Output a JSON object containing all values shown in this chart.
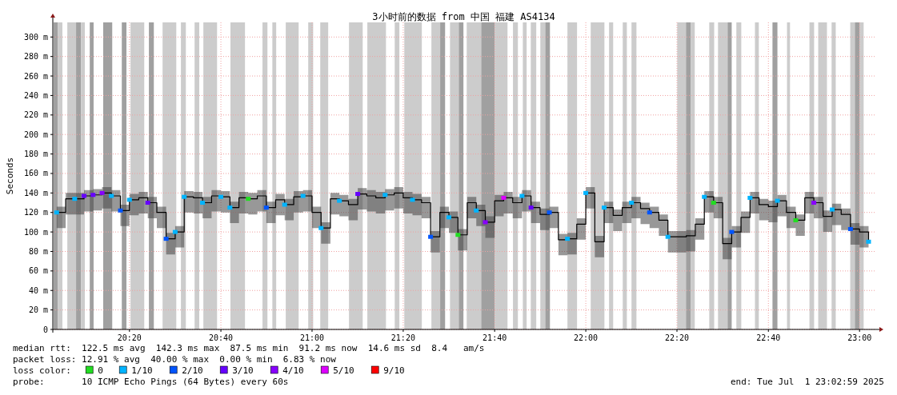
{
  "chart_data": {
    "type": "step",
    "title": "3小时前的数据 from 中国 福建 AS4134",
    "ylabel": "Seconds",
    "legend_title": "loss color:",
    "legend": "bottom",
    "grid": true,
    "xlim": [
      20.053,
      23.055
    ],
    "xticks": [
      {
        "value": 20.333,
        "label": "20:20"
      },
      {
        "value": 20.667,
        "label": "20:40"
      },
      {
        "value": 21,
        "label": "21:00"
      },
      {
        "value": 21.333,
        "label": "21:20"
      },
      {
        "value": 21.667,
        "label": "21:40"
      },
      {
        "value": 22,
        "label": "22:00"
      },
      {
        "value": 22.333,
        "label": "22:20"
      },
      {
        "value": 22.667,
        "label": "22:40"
      },
      {
        "value": 23,
        "label": "23:00"
      }
    ],
    "ylim": [
      0,
      315
    ],
    "yticks": [
      0,
      {
        "value": 20,
        "label": "20 m"
      },
      {
        "value": 40,
        "label": "40 m"
      },
      {
        "value": 60,
        "label": "60 m"
      },
      {
        "value": 80,
        "label": "80 m"
      },
      {
        "value": 100,
        "label": "100 m"
      },
      {
        "value": 120,
        "label": "120 m"
      },
      {
        "value": 140,
        "label": "140 m"
      },
      {
        "value": 160,
        "label": "160 m"
      },
      {
        "value": 180,
        "label": "180 m"
      },
      {
        "value": 200,
        "label": "200 m"
      },
      {
        "value": 220,
        "label": "220 m"
      },
      {
        "value": 240,
        "label": "240 m"
      },
      {
        "value": 260,
        "label": "260 m"
      },
      {
        "value": 280,
        "label": "280 m"
      },
      {
        "value": 300,
        "label": "300 m"
      }
    ],
    "bands": [
      {
        "axis": "x",
        "from": 20.056,
        "to": 20.071,
        "color": "#a0a0a0"
      },
      {
        "axis": "x",
        "from": 20.071,
        "to": 20.088,
        "color": "#cccccc"
      },
      {
        "axis": "x",
        "from": 20.106,
        "to": 20.138,
        "color": "#cccccc"
      },
      {
        "axis": "x",
        "from": 20.138,
        "to": 20.156,
        "color": "#a0a0a0"
      },
      {
        "axis": "x",
        "from": 20.156,
        "to": 20.17,
        "color": "#cccccc"
      },
      {
        "axis": "x",
        "from": 20.188,
        "to": 20.202,
        "color": "#a0a0a0"
      },
      {
        "axis": "x",
        "from": 20.237,
        "to": 20.27,
        "color": "#a0a0a0"
      },
      {
        "axis": "x",
        "from": 20.305,
        "to": 20.322,
        "color": "#a0a0a0"
      },
      {
        "axis": "x",
        "from": 20.337,
        "to": 20.387,
        "color": "#cccccc"
      },
      {
        "axis": "x",
        "from": 20.404,
        "to": 20.422,
        "color": "#a0a0a0"
      },
      {
        "axis": "x",
        "from": 20.454,
        "to": 20.504,
        "color": "#cccccc"
      },
      {
        "axis": "x",
        "from": 20.521,
        "to": 20.539,
        "color": "#cccccc"
      },
      {
        "axis": "x",
        "from": 20.571,
        "to": 20.588,
        "color": "#cccccc"
      },
      {
        "axis": "x",
        "from": 20.603,
        "to": 20.653,
        "color": "#cccccc"
      },
      {
        "axis": "x",
        "from": 20.702,
        "to": 20.755,
        "color": "#cccccc"
      },
      {
        "axis": "x",
        "from": 20.819,
        "to": 20.837,
        "color": "#cccccc"
      },
      {
        "axis": "x",
        "from": 20.855,
        "to": 20.869,
        "color": "#cccccc"
      },
      {
        "axis": "x",
        "from": 20.904,
        "to": 20.951,
        "color": "#cccccc"
      },
      {
        "axis": "x",
        "from": 20.986,
        "to": 21.004,
        "color": "#cccccc"
      },
      {
        "axis": "x",
        "from": 21.03,
        "to": 21.059,
        "color": "#cccccc"
      },
      {
        "axis": "x",
        "from": 21.135,
        "to": 21.185,
        "color": "#cccccc"
      },
      {
        "axis": "x",
        "from": 21.202,
        "to": 21.27,
        "color": "#cccccc"
      },
      {
        "axis": "x",
        "from": 21.302,
        "to": 21.319,
        "color": "#cccccc"
      },
      {
        "axis": "x",
        "from": 21.337,
        "to": 21.401,
        "color": "#cccccc"
      },
      {
        "axis": "x",
        "from": 21.436,
        "to": 21.468,
        "color": "#cccccc"
      },
      {
        "axis": "x",
        "from": 21.468,
        "to": 21.486,
        "color": "#a0a0a0"
      },
      {
        "axis": "x",
        "from": 21.504,
        "to": 21.536,
        "color": "#cccccc"
      },
      {
        "axis": "x",
        "from": 21.536,
        "to": 21.553,
        "color": "#a0a0a0"
      },
      {
        "axis": "x",
        "from": 21.565,
        "to": 21.618,
        "color": "#cccccc"
      },
      {
        "axis": "x",
        "from": 21.618,
        "to": 21.667,
        "color": "#a0a0a0"
      },
      {
        "axis": "x",
        "from": 21.667,
        "to": 21.714,
        "color": "#cccccc"
      },
      {
        "axis": "x",
        "from": 21.734,
        "to": 21.752,
        "color": "#cccccc"
      },
      {
        "axis": "x",
        "from": 21.77,
        "to": 21.784,
        "color": "#cccccc"
      },
      {
        "axis": "x",
        "from": 21.799,
        "to": 21.819,
        "color": "#cccccc"
      },
      {
        "axis": "x",
        "from": 21.834,
        "to": 21.852,
        "color": "#cccccc"
      },
      {
        "axis": "x",
        "from": 21.852,
        "to": 21.869,
        "color": "#a0a0a0"
      },
      {
        "axis": "x",
        "from": 21.933,
        "to": 21.968,
        "color": "#cccccc"
      },
      {
        "axis": "x",
        "from": 22.018,
        "to": 22.068,
        "color": "#cccccc"
      },
      {
        "axis": "x",
        "from": 22.085,
        "to": 22.1,
        "color": "#cccccc"
      },
      {
        "axis": "x",
        "from": 22.135,
        "to": 22.15,
        "color": "#cccccc"
      },
      {
        "axis": "x",
        "from": 22.167,
        "to": 22.185,
        "color": "#cccccc"
      },
      {
        "axis": "x",
        "from": 22.334,
        "to": 22.366,
        "color": "#cccccc"
      },
      {
        "axis": "x",
        "from": 22.366,
        "to": 22.384,
        "color": "#a0a0a0"
      },
      {
        "axis": "x",
        "from": 22.384,
        "to": 22.398,
        "color": "#cccccc"
      },
      {
        "axis": "x",
        "from": 22.451,
        "to": 22.469,
        "color": "#cccccc"
      },
      {
        "axis": "x",
        "from": 22.483,
        "to": 22.518,
        "color": "#cccccc"
      },
      {
        "axis": "x",
        "from": 22.518,
        "to": 22.533,
        "color": "#a0a0a0"
      },
      {
        "axis": "x",
        "from": 22.55,
        "to": 22.568,
        "color": "#cccccc"
      },
      {
        "axis": "x",
        "from": 22.618,
        "to": 22.632,
        "color": "#cccccc"
      },
      {
        "axis": "x",
        "from": 22.682,
        "to": 22.7,
        "color": "#a0a0a0"
      },
      {
        "axis": "x",
        "from": 22.735,
        "to": 22.746,
        "color": "#cccccc"
      },
      {
        "axis": "x",
        "from": 22.817,
        "to": 22.834,
        "color": "#cccccc"
      },
      {
        "axis": "x",
        "from": 22.849,
        "to": 22.881,
        "color": "#cccccc"
      },
      {
        "axis": "x",
        "from": 22.898,
        "to": 22.913,
        "color": "#cccccc"
      },
      {
        "axis": "x",
        "from": 22.966,
        "to": 22.983,
        "color": "#cccccc"
      },
      {
        "axis": "x",
        "from": 22.983,
        "to": 23.001,
        "color": "#a0a0a0"
      },
      {
        "axis": "x",
        "from": 23.001,
        "to": 23.015,
        "color": "#cccccc"
      }
    ],
    "x": [
      20.067,
      20.1,
      20.133,
      20.167,
      20.2,
      20.233,
      20.267,
      20.3,
      20.333,
      20.367,
      20.4,
      20.433,
      20.467,
      20.5,
      20.533,
      20.567,
      20.6,
      20.633,
      20.667,
      20.7,
      20.733,
      20.767,
      20.8,
      20.833,
      20.867,
      20.9,
      20.933,
      20.967,
      21,
      21.033,
      21.067,
      21.1,
      21.133,
      21.167,
      21.2,
      21.233,
      21.267,
      21.3,
      21.333,
      21.367,
      21.4,
      21.433,
      21.467,
      21.5,
      21.533,
      21.567,
      21.6,
      21.633,
      21.667,
      21.7,
      21.733,
      21.767,
      21.8,
      21.833,
      21.867,
      21.9,
      21.933,
      21.967,
      22,
      22.033,
      22.067,
      22.1,
      22.133,
      22.167,
      22.2,
      22.233,
      22.267,
      22.3,
      22.333,
      22.367,
      22.4,
      22.433,
      22.467,
      22.5,
      22.533,
      22.567,
      22.6,
      22.633,
      22.667,
      22.7,
      22.733,
      22.767,
      22.8,
      22.833,
      22.867,
      22.9,
      22.933,
      22.967,
      23,
      23.033
    ],
    "series": [
      {
        "color": "#000000",
        "values": [
          120,
          134,
          134,
          137,
          138,
          140,
          137,
          122,
          133,
          135,
          130,
          120,
          93,
          100,
          136,
          135,
          130,
          137,
          136,
          125,
          135,
          134,
          137,
          125,
          133,
          128,
          136,
          137,
          120,
          104,
          134,
          132,
          128,
          139,
          137,
          135,
          138,
          140,
          135,
          133,
          130,
          95,
          120,
          115,
          97,
          130,
          122,
          110,
          132,
          135,
          130,
          137,
          125,
          118,
          120,
          92,
          93,
          108,
          140,
          90,
          125,
          117,
          125,
          130,
          124,
          120,
          112,
          95,
          95,
          96,
          108,
          136,
          130,
          88,
          100,
          115,
          135,
          128,
          126,
          132,
          120,
          112,
          135,
          130,
          116,
          123,
          118,
          103,
          100,
          90
        ],
        "upper": [
          126,
          140,
          140,
          143,
          144,
          146,
          143,
          128,
          139,
          141,
          136,
          126,
          99,
          106,
          142,
          141,
          136,
          143,
          142,
          131,
          141,
          140,
          143,
          131,
          139,
          134,
          142,
          143,
          126,
          110,
          140,
          138,
          134,
          145,
          143,
          141,
          144,
          146,
          141,
          139,
          136,
          101,
          126,
          121,
          103,
          136,
          128,
          116,
          138,
          141,
          136,
          143,
          131,
          124,
          126,
          98,
          99,
          114,
          146,
          96,
          131,
          123,
          131,
          136,
          130,
          126,
          118,
          101,
          101,
          102,
          114,
          142,
          136,
          94,
          106,
          121,
          141,
          134,
          132,
          138,
          126,
          118,
          141,
          136,
          122,
          129,
          124,
          109,
          106,
          96
        ],
        "lower": [
          104,
          118,
          118,
          121,
          122,
          124,
          121,
          106,
          117,
          119,
          114,
          104,
          77,
          84,
          120,
          119,
          114,
          121,
          120,
          109,
          119,
          118,
          121,
          109,
          117,
          112,
          120,
          121,
          104,
          88,
          118,
          116,
          112,
          123,
          121,
          119,
          122,
          124,
          119,
          117,
          114,
          79,
          104,
          99,
          81,
          114,
          106,
          94,
          116,
          119,
          114,
          121,
          109,
          102,
          104,
          76,
          77,
          92,
          124,
          74,
          109,
          101,
          109,
          114,
          108,
          104,
          96,
          79,
          79,
          80,
          92,
          120,
          114,
          72,
          84,
          99,
          119,
          112,
          110,
          116,
          104,
          96,
          119,
          114,
          100,
          107,
          102,
          87,
          84,
          74
        ]
      },
      {
        "type": "scatter",
        "name": "0",
        "color": "#22dd22",
        "marker": "square",
        "x": [
          20.767,
          21.533,
          22.467,
          22.767
        ],
        "values": [
          134,
          97,
          130,
          112
        ]
      },
      {
        "type": "scatter",
        "name": "1/10",
        "color": "#00b4ff",
        "marker": "square",
        "x": [
          20.067,
          20.133,
          20.267,
          20.333,
          20.5,
          20.533,
          20.6,
          20.667,
          20.7,
          20.9,
          20.967,
          21.033,
          21.1,
          21.267,
          21.367,
          21.5,
          21.6,
          21.767,
          21.933,
          22,
          22.067,
          22.167,
          22.3,
          22.433,
          22.6,
          22.7,
          22.9,
          23.033
        ],
        "values": [
          120,
          134,
          137,
          133,
          100,
          136,
          130,
          136,
          125,
          128,
          137,
          104,
          132,
          138,
          133,
          115,
          122,
          137,
          93,
          140,
          125,
          130,
          95,
          136,
          135,
          132,
          123,
          90
        ]
      },
      {
        "type": "scatter",
        "name": "2/10",
        "color": "#0055ff",
        "marker": "square",
        "x": [
          20.3,
          20.467,
          20.833,
          21.433,
          21.867,
          22.233,
          22.533,
          22.967
        ],
        "values": [
          122,
          93,
          125,
          95,
          120,
          120,
          100,
          103
        ]
      },
      {
        "type": "scatter",
        "name": "3/10",
        "color": "#6600ff",
        "marker": "square",
        "x": [
          20.167,
          20.2,
          20.4,
          21.167,
          21.8
        ],
        "values": [
          137,
          138,
          130,
          139,
          125
        ]
      },
      {
        "type": "scatter",
        "name": "4/10",
        "color": "#8800ff",
        "marker": "square",
        "x": [
          20.233,
          21.633,
          22.833
        ],
        "values": [
          140,
          110,
          130
        ]
      },
      {
        "type": "scatter",
        "name": "5/10",
        "color": "#dd00ff",
        "marker": "square",
        "x": [
          21.7
        ],
        "values": [
          135
        ]
      },
      {
        "type": "scatter",
        "name": "9/10",
        "color": "#ff0000",
        "marker": "square",
        "values": [
          null,
          null,
          null,
          null,
          null,
          null,
          null,
          null,
          null,
          null,
          null,
          null,
          null,
          null,
          null,
          null,
          null,
          null,
          null,
          null,
          null,
          null,
          null,
          null,
          null,
          null,
          null,
          null,
          null,
          null,
          null,
          null,
          null,
          null,
          null,
          null,
          null,
          null,
          null,
          null,
          null,
          null,
          null,
          null,
          null,
          null,
          null,
          null,
          null,
          null,
          null,
          null,
          null,
          null,
          null,
          null,
          null,
          null,
          null,
          null,
          null,
          null,
          null,
          null,
          null,
          null,
          null,
          null,
          null,
          null,
          null,
          null,
          null,
          null,
          null,
          null,
          null,
          null,
          null,
          null,
          null,
          null,
          null,
          null,
          null,
          null,
          null,
          null,
          null,
          null
        ]
      }
    ],
    "annotations": [
      "median rtt:  122.5 ms avg  142.3 ms max  87.5 ms min  91.2 ms now  14.6 ms sd  8.4   am/s",
      "packet loss: 12.91 % avg  40.00 % max  0.00 % min  6.83 % now",
      "probe:       10 ICMP Echo Pings (64 Bytes) every 60s",
      "end: Tue Jul  1 23:02:59 2025"
    ]
  }
}
